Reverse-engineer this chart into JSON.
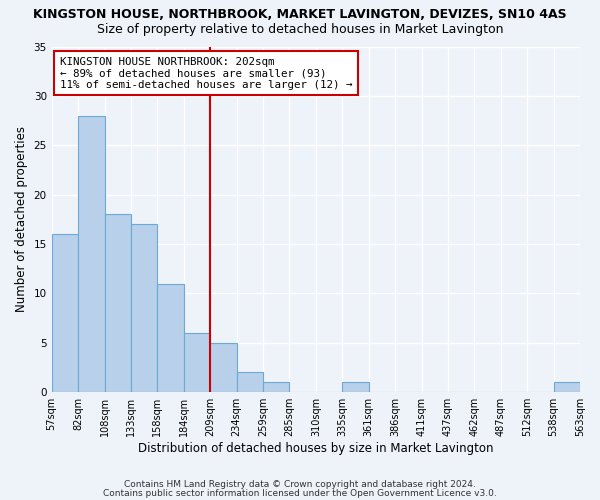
{
  "title1": "KINGSTON HOUSE, NORTHBROOK, MARKET LAVINGTON, DEVIZES, SN10 4AS",
  "title2": "Size of property relative to detached houses in Market Lavington",
  "xlabel": "Distribution of detached houses by size in Market Lavington",
  "ylabel": "Number of detached properties",
  "bar_values": [
    16,
    28,
    18,
    17,
    11,
    6,
    5,
    2,
    1,
    0,
    0,
    1,
    0,
    0,
    0,
    0,
    0,
    0,
    0,
    1
  ],
  "tick_labels": [
    "57sqm",
    "82sqm",
    "108sqm",
    "133sqm",
    "158sqm",
    "184sqm",
    "209sqm",
    "234sqm",
    "259sqm",
    "285sqm",
    "310sqm",
    "335sqm",
    "361sqm",
    "386sqm",
    "411sqm",
    "437sqm",
    "462sqm",
    "487sqm",
    "512sqm",
    "538sqm",
    "563sqm"
  ],
  "n_bins": 20,
  "bar_color": "#b8d0ea",
  "bar_edge_color": "#6aaad4",
  "vline_bin": 6,
  "vline_color": "#cc0000",
  "annotation_lines": [
    "KINGSTON HOUSE NORTHBROOK: 202sqm",
    "← 89% of detached houses are smaller (93)",
    "11% of semi-detached houses are larger (12) →"
  ],
  "annotation_box_color": "#ffffff",
  "annotation_box_edge_color": "#cc0000",
  "ylim_max": 35,
  "yticks": [
    0,
    5,
    10,
    15,
    20,
    25,
    30,
    35
  ],
  "footer1": "Contains HM Land Registry data © Crown copyright and database right 2024.",
  "footer2": "Contains public sector information licensed under the Open Government Licence v3.0.",
  "bg_color": "#eef2f9",
  "grid_color": "#ffffff",
  "title1_fontsize": 9,
  "title2_fontsize": 9,
  "annotation_fontsize": 7.8,
  "tick_fontsize": 7,
  "ylabel_fontsize": 8.5,
  "xlabel_fontsize": 8.5,
  "footer_fontsize": 6.5
}
